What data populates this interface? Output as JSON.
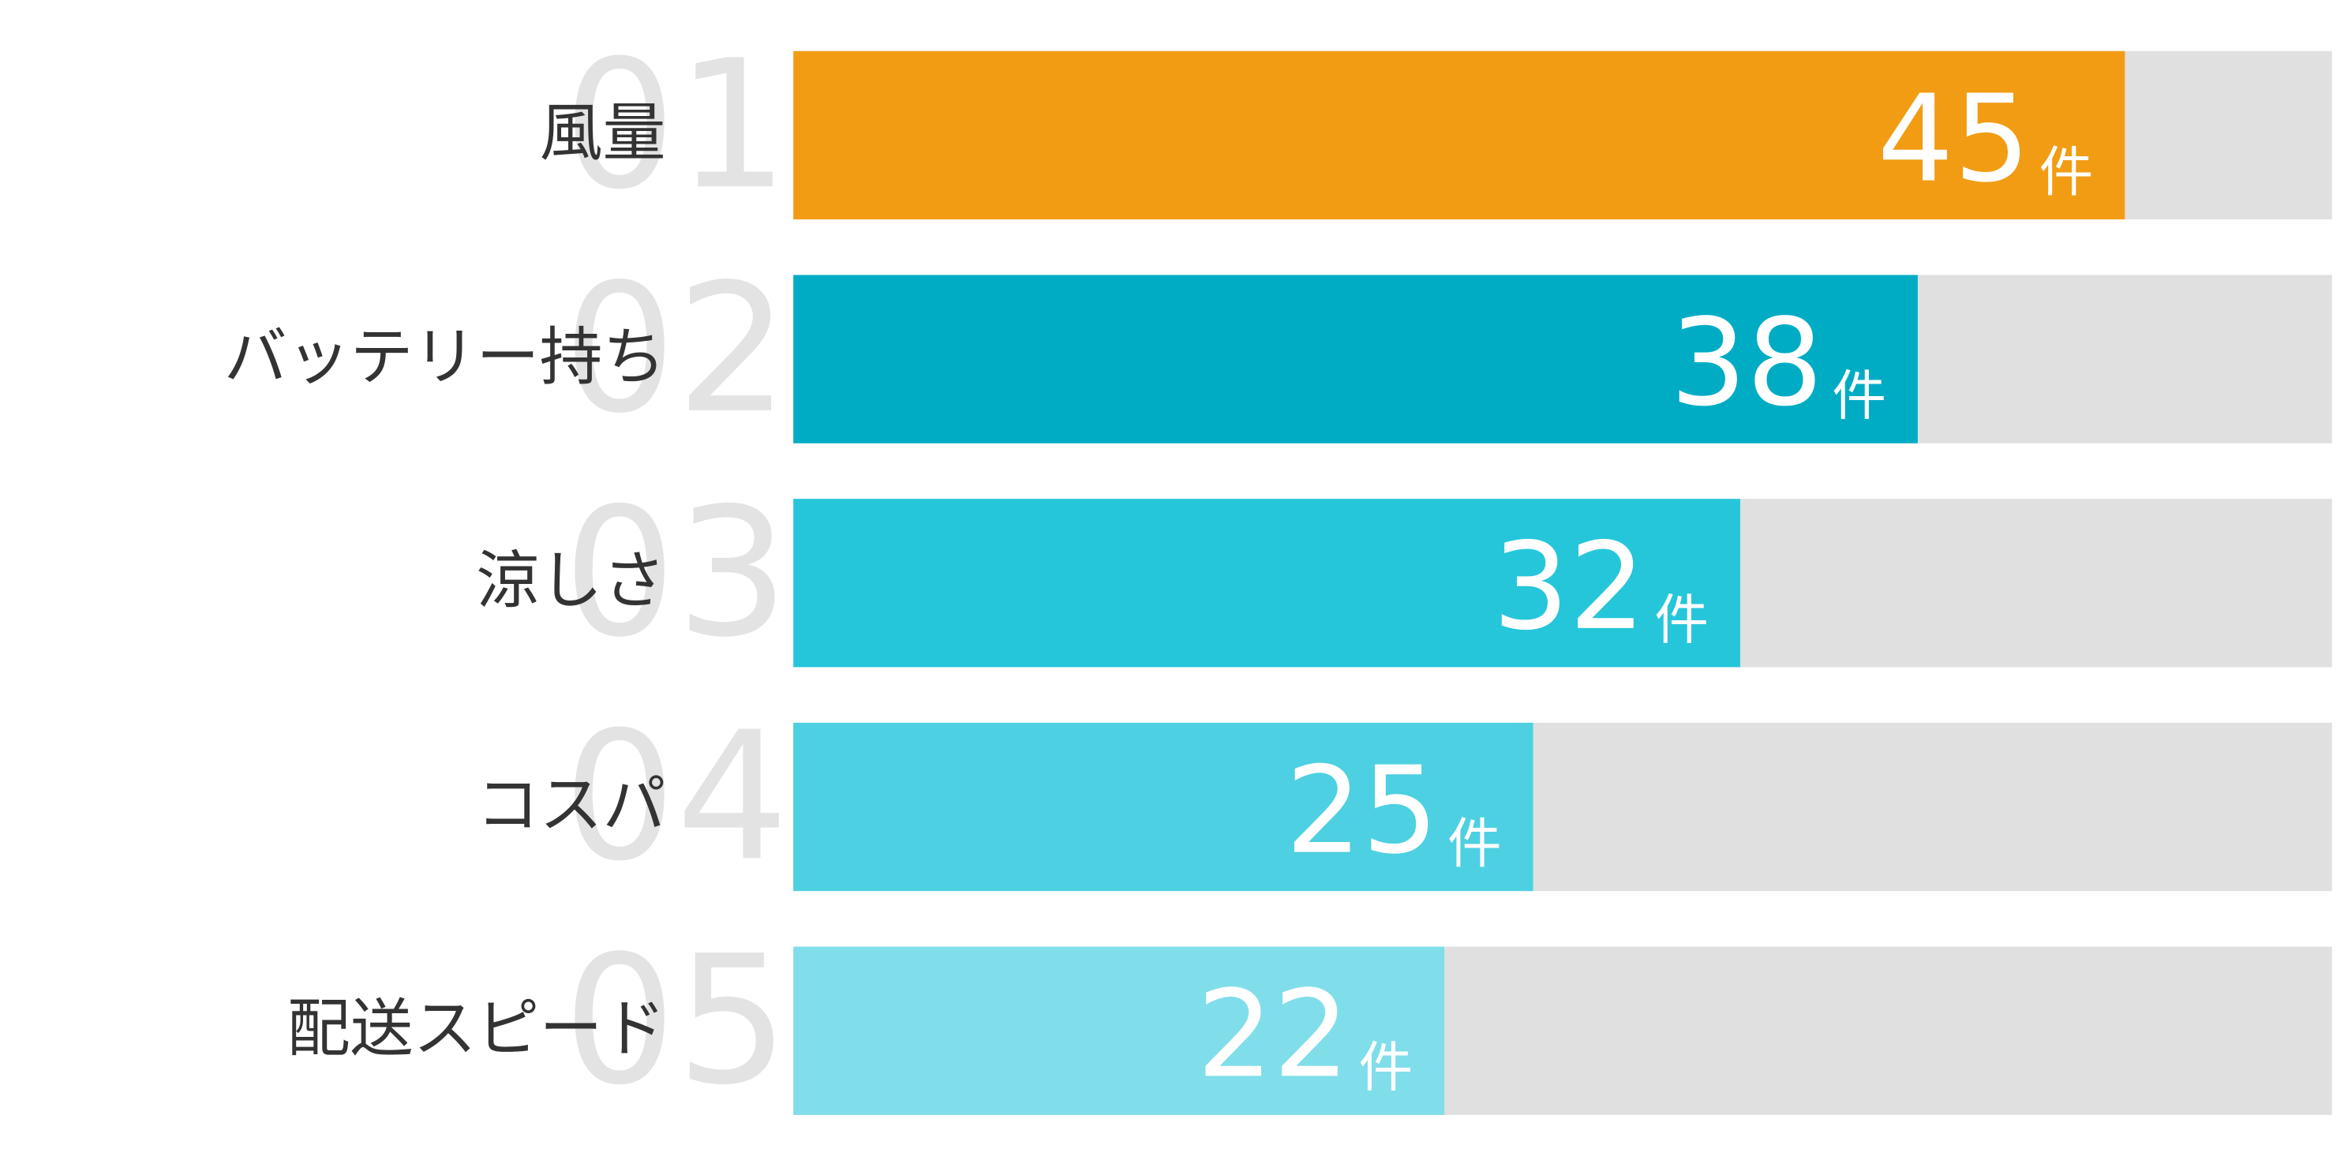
{
  "chart_data": {
    "type": "bar",
    "orientation": "horizontal",
    "categories": [
      "風量",
      "バッテリー持ち",
      "涼しさ",
      "コスパ",
      "配送スピード"
    ],
    "ranks": [
      "01",
      "02",
      "03",
      "04",
      "05"
    ],
    "values": [
      45,
      38,
      32,
      25,
      22
    ],
    "unit": "件",
    "colors": [
      "#f29c14",
      "#00acc4",
      "#26c6da",
      "#4dd0e1",
      "#80deea"
    ],
    "track_color": "#e0e0e0",
    "xlim": [
      0,
      52
    ]
  }
}
